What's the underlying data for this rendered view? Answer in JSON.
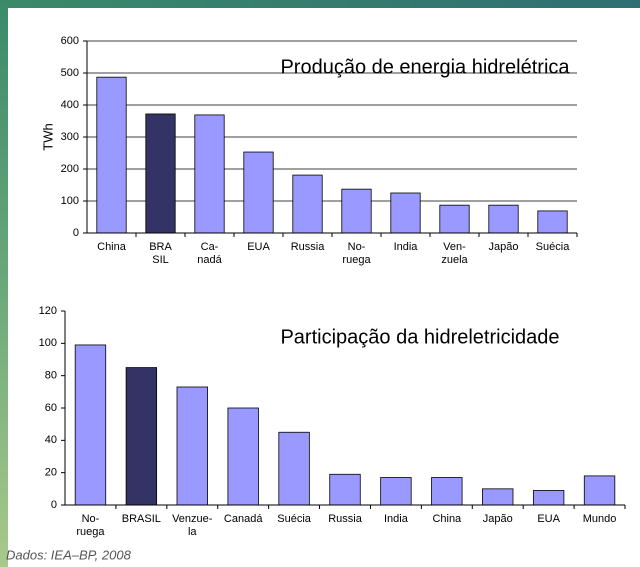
{
  "chart_data": [
    {
      "type": "bar",
      "title": "Produção de energia hidrelétrica",
      "y_label": "TWh",
      "categories": [
        "China",
        "BRA\nSIL",
        "Ca-\nnadá",
        "EUA",
        "Russia",
        "No-\nruega",
        "India",
        "Ven-\nzuela",
        "Japão",
        "Suécia"
      ],
      "values": [
        487,
        372,
        369,
        253,
        181,
        137,
        125,
        87,
        87,
        69
      ],
      "colors": [
        "#9999ff",
        "#333366",
        "#9999ff",
        "#9999ff",
        "#9999ff",
        "#9999ff",
        "#9999ff",
        "#9999ff",
        "#9999ff",
        "#9999ff"
      ],
      "ylim": [
        0,
        600
      ],
      "yticks": [
        0,
        100,
        200,
        300,
        400,
        500,
        600
      ],
      "grid": true
    },
    {
      "type": "bar",
      "title": "Participação da hidreletricidade",
      "categories": [
        "No-\nruega",
        "BRASIL",
        "Venzue-\nla",
        "Canadá",
        "Suécia",
        "Russia",
        "India",
        "China",
        "Japão",
        "EUA",
        "Mundo"
      ],
      "values": [
        99,
        85,
        73,
        60,
        45,
        19,
        17,
        17,
        10,
        9,
        18
      ],
      "colors": [
        "#9999ff",
        "#333366",
        "#9999ff",
        "#9999ff",
        "#9999ff",
        "#9999ff",
        "#9999ff",
        "#9999ff",
        "#9999ff",
        "#9999ff",
        "#9999ff"
      ],
      "ylim": [
        0,
        120
      ],
      "yticks": [
        0,
        20,
        40,
        60,
        80,
        100,
        120
      ],
      "grid": false
    }
  ],
  "footnote": "Dados: IEA–BP, 2008"
}
